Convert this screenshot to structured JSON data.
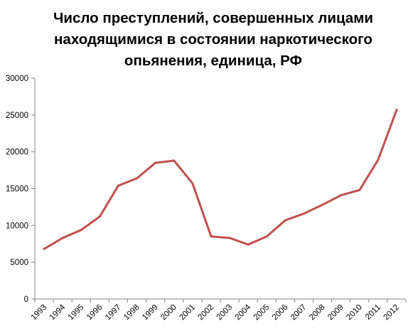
{
  "chart_data": {
    "type": "line",
    "title_lines": [
      "Число преступлений, совершенных лицами",
      "находящимися в состоянии наркотического",
      "опьянения, единица, РФ"
    ],
    "xlabel": "",
    "ylabel": "",
    "categories": [
      "1993",
      "1994",
      "1995",
      "1996",
      "1997",
      "1998",
      "1999",
      "2000",
      "2001",
      "2002",
      "2003",
      "2004",
      "2005",
      "2006",
      "2007",
      "2008",
      "2009",
      "2010",
      "2011",
      "2012"
    ],
    "series": [
      {
        "values": [
          6800,
          8300,
          9400,
          11200,
          15400,
          16400,
          18500,
          18800,
          15700,
          8500,
          8300,
          7400,
          8500,
          10700,
          11600,
          12800,
          14100,
          14800,
          18900,
          25700
        ],
        "color": "#c0504d"
      }
    ],
    "ylim": [
      0,
      30000
    ],
    "yticks": [
      0,
      5000,
      10000,
      15000,
      20000,
      25000,
      30000
    ],
    "grid": false,
    "legend": "none"
  }
}
